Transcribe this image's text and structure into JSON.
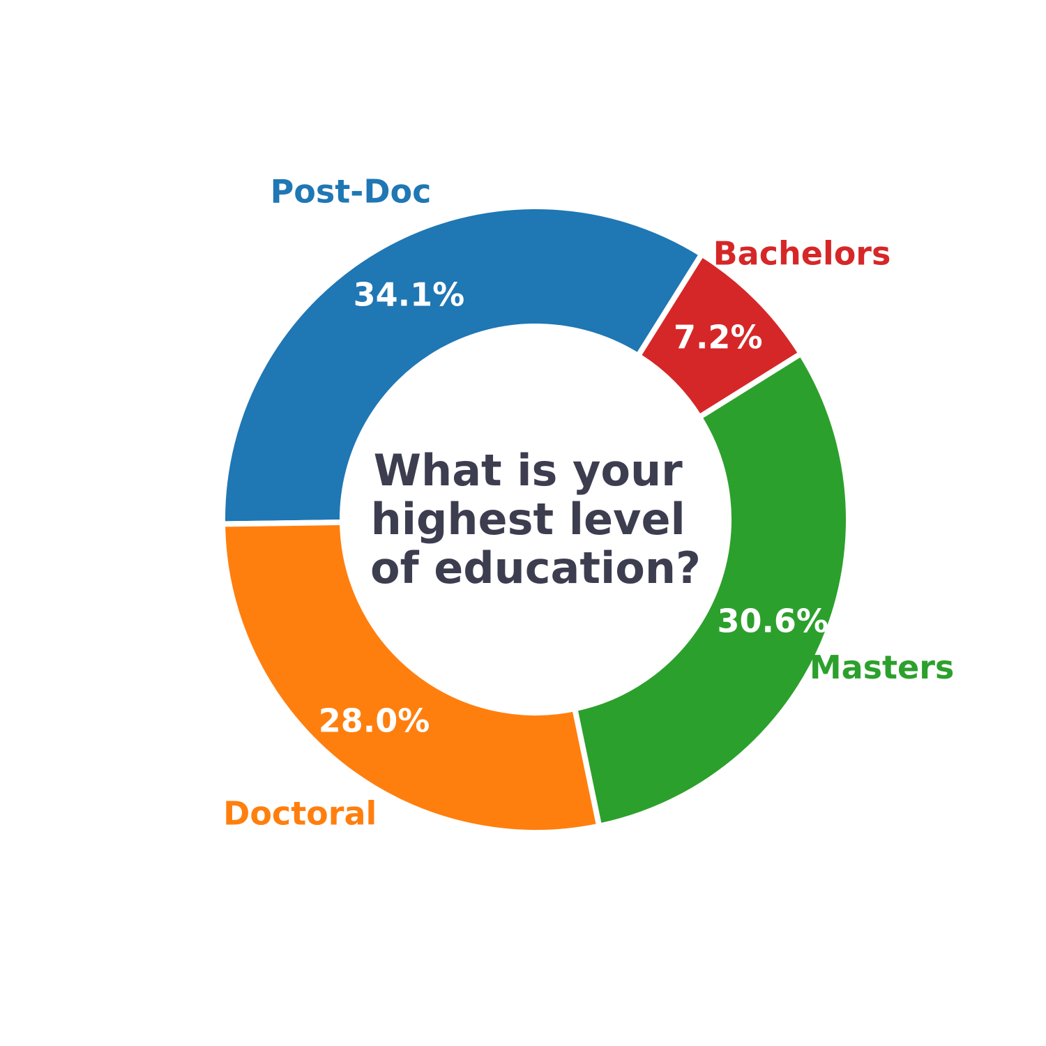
{
  "chart_data": {
    "type": "pie",
    "variant": "donut",
    "center_title_lines": [
      "What is your",
      "highest level",
      "of education?"
    ],
    "categories": [
      "Bachelors",
      "Post-Doc",
      "Doctoral",
      "Masters"
    ],
    "values": [
      7.2,
      34.1,
      28.0,
      30.6
    ],
    "value_labels": [
      "7.2%",
      "34.1%",
      "28.0%",
      "30.6%"
    ],
    "colors": [
      "#d62728",
      "#1f77b4",
      "#ff7f0e",
      "#2ca02c"
    ],
    "legend": "none"
  }
}
